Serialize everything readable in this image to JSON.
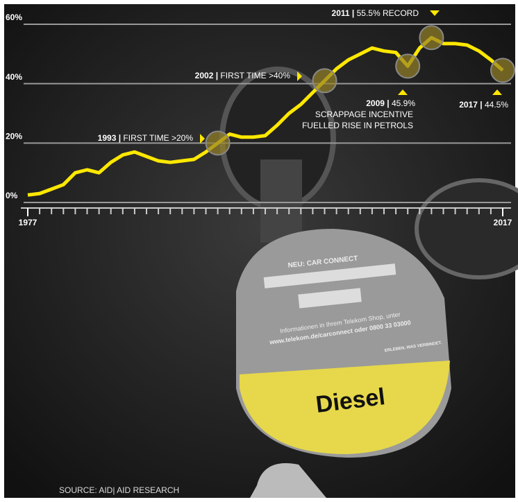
{
  "chart_data": {
    "type": "line",
    "x": [
      1977,
      1978,
      1979,
      1980,
      1981,
      1982,
      1983,
      1984,
      1985,
      1986,
      1987,
      1988,
      1989,
      1990,
      1991,
      1992,
      1993,
      1994,
      1995,
      1996,
      1997,
      1998,
      1999,
      2000,
      2001,
      2002,
      2003,
      2004,
      2005,
      2006,
      2007,
      2008,
      2009,
      2010,
      2011,
      2012,
      2013,
      2014,
      2015,
      2016,
      2017
    ],
    "series": [
      {
        "color": "#ffe800",
        "values": [
          2.5,
          3,
          4.5,
          6,
          10,
          11,
          10,
          13.5,
          16,
          17,
          15.5,
          14,
          13.5,
          14,
          14.5,
          17,
          20,
          23,
          22,
          22,
          22.5,
          26,
          30,
          33,
          37,
          41,
          45,
          48,
          50,
          52,
          51,
          50.5,
          45.9,
          52,
          55.5,
          53.5,
          53.5,
          53,
          51,
          48,
          44.5
        ]
      }
    ],
    "xlim": [
      1977,
      2017
    ],
    "xticks": [
      1977,
      2017
    ],
    "ylim": [
      0,
      60
    ],
    "yticks": [
      {
        "value": 0,
        "label": "0%"
      },
      {
        "value": 20,
        "label": "20%"
      },
      {
        "value": 40,
        "label": "40%"
      },
      {
        "value": 60,
        "label": "60%"
      }
    ],
    "grid": true,
    "annotations": [
      {
        "head": "1993 |",
        "text": "FIRST TIME >20%"
      },
      {
        "head": "2002 |",
        "text": "FIRST TIME >40%"
      },
      {
        "head": "2009 |",
        "text": "45.9%",
        "note": [
          "SCRAPPAGE INCENTIVE",
          "FUELLED RISE IN PETROLS"
        ]
      },
      {
        "head": "2011 |",
        "text": "55.5% RECORD"
      },
      {
        "head": "2017 |",
        "text": "44.5%"
      }
    ],
    "source": "SOURCE: AID| AID RESEARCH"
  },
  "photo_text": [
    "NEU: CAR CONNECT",
    "Informationen in Ihrem Telekom Shop, unter",
    "www.telekom.de/carconnect oder 0800 33 03000",
    "ERLEBEN, WAS VERBINDET.",
    "Diesel"
  ]
}
